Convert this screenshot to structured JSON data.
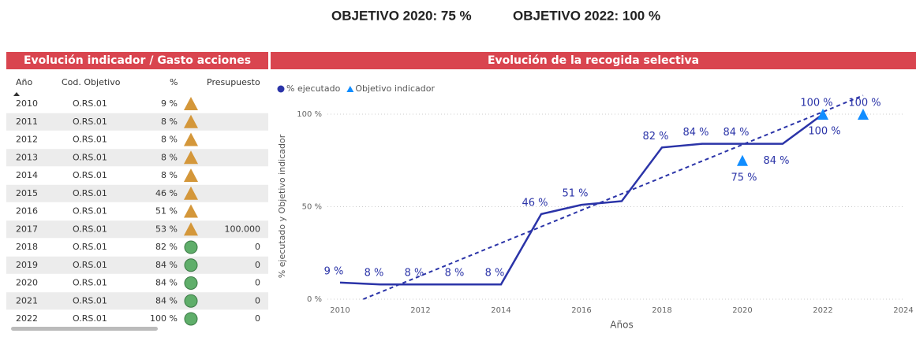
{
  "header": {
    "goals": [
      "OBJETIVO 2020: 75 %",
      "OBJETIVO 2022: 100 %"
    ]
  },
  "table": {
    "title": "Evolución indicador / Gasto acciones",
    "columns": [
      "Año",
      "Cod. Objetivo",
      "%",
      "Presupuesto"
    ],
    "rows": [
      [
        2010,
        "O.RS.01",
        "9 %",
        null
      ],
      [
        2011,
        "O.RS.01",
        "8 %",
        null
      ],
      [
        2012,
        "O.RS.01",
        "8 %",
        null
      ],
      [
        2013,
        "O.RS.01",
        "8 %",
        null
      ],
      [
        2014,
        "O.RS.01",
        "8 %",
        null
      ],
      [
        2015,
        "O.RS.01",
        "46 %",
        null
      ],
      [
        2016,
        "O.RS.01",
        "51 %",
        null
      ],
      [
        2017,
        "O.RS.01",
        "53 %",
        "100.000"
      ],
      [
        2018,
        "O.RS.01",
        "82 %",
        "0"
      ],
      [
        2019,
        "O.RS.01",
        "84 %",
        "0"
      ],
      [
        2020,
        "O.RS.01",
        "84 %",
        "0"
      ],
      [
        2021,
        "O.RS.01",
        "84 %",
        "0"
      ],
      [
        2022,
        "O.RS.01",
        "100 %",
        "0"
      ]
    ]
  },
  "chart_data": {
    "type": "line",
    "title": "Evolución de la recogida selectiva",
    "xlabel": "Años",
    "ylabel": "% ejecutado y Objetivo indicador",
    "x": [
      2010,
      2011,
      2012,
      2013,
      2014,
      2015,
      2016,
      2017,
      2018,
      2019,
      2020,
      2021,
      2022,
      2023
    ],
    "series": [
      {
        "name": "% ejecutado",
        "color": "#2b34a8",
        "values": [
          9,
          8,
          8,
          8,
          8,
          46,
          51,
          53,
          82,
          84,
          84,
          84,
          100,
          null
        ],
        "value_labels": [
          "9 %",
          "8 %",
          "8 %",
          "8 %",
          "8 %",
          "46 %",
          "51 %",
          null,
          "82 %",
          "84 %",
          "84 %",
          "84 %",
          "100 %",
          null
        ]
      },
      {
        "name": "Objetivo indicador",
        "color": "#118dff",
        "marker": "triangle",
        "values": [
          null,
          null,
          null,
          null,
          null,
          null,
          null,
          null,
          null,
          null,
          75,
          null,
          100,
          100
        ],
        "value_labels": [
          null,
          null,
          null,
          null,
          null,
          null,
          null,
          null,
          null,
          null,
          "75 %",
          null,
          "100 %",
          "100 %"
        ]
      }
    ],
    "xlim": [
      2010,
      2024
    ],
    "xticks": [
      2010,
      2012,
      2014,
      2016,
      2018,
      2020,
      2022,
      2024
    ],
    "ylim": [
      0,
      100
    ],
    "yticks": [
      {
        "value": 0,
        "label": "0 %"
      },
      {
        "value": 50,
        "label": "50 %"
      },
      {
        "value": 100,
        "label": "100 %"
      }
    ],
    "grid": true,
    "trendline": true,
    "legend": "top-left"
  }
}
